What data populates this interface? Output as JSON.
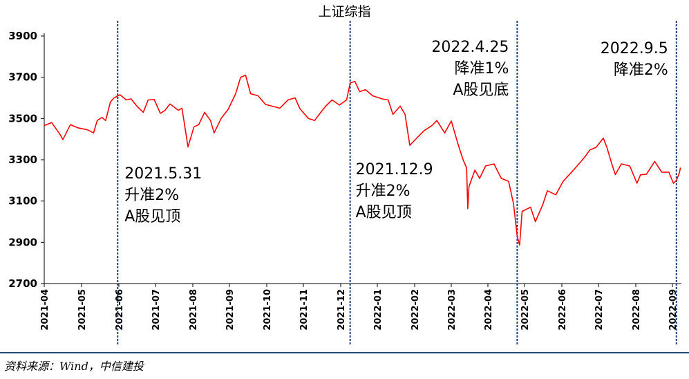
{
  "chart_data": {
    "type": "line",
    "title": "上证综指",
    "xlabel": "",
    "ylabel": "",
    "ylim": [
      2700,
      3900
    ],
    "yticks": [
      "2700",
      "2900",
      "3100",
      "3300",
      "3500",
      "3700",
      "3900"
    ],
    "xticks": [
      "2021-04",
      "2021-05",
      "2021-06",
      "2021-07",
      "2021-08",
      "2021-09",
      "2021-10",
      "2021-11",
      "2021-12",
      "2022-01",
      "2022-02",
      "2022-03",
      "2022-04",
      "2022-05",
      "2022-06",
      "2022-07",
      "2022-08",
      "2022-09"
    ],
    "grid": false,
    "line_color": "#ff0000",
    "series": [
      {
        "name": "",
        "points": [
          [
            "2021-04-01",
            3466
          ],
          [
            "2021-04-07",
            3480
          ],
          [
            "2021-04-14",
            3420
          ],
          [
            "2021-04-16",
            3398
          ],
          [
            "2021-04-22",
            3470
          ],
          [
            "2021-04-28",
            3455
          ],
          [
            "2021-05-06",
            3445
          ],
          [
            "2021-05-11",
            3430
          ],
          [
            "2021-05-14",
            3490
          ],
          [
            "2021-05-18",
            3505
          ],
          [
            "2021-05-21",
            3490
          ],
          [
            "2021-05-25",
            3580
          ],
          [
            "2021-05-28",
            3600
          ],
          [
            "2021-06-02",
            3615
          ],
          [
            "2021-06-07",
            3590
          ],
          [
            "2021-06-11",
            3595
          ],
          [
            "2021-06-16",
            3558
          ],
          [
            "2021-06-21",
            3530
          ],
          [
            "2021-06-25",
            3590
          ],
          [
            "2021-06-30",
            3592
          ],
          [
            "2021-07-05",
            3525
          ],
          [
            "2021-07-09",
            3540
          ],
          [
            "2021-07-13",
            3570
          ],
          [
            "2021-07-20",
            3540
          ],
          [
            "2021-07-23",
            3550
          ],
          [
            "2021-07-27",
            3400
          ],
          [
            "2021-07-28",
            3362
          ],
          [
            "2021-08-02",
            3460
          ],
          [
            "2021-08-06",
            3470
          ],
          [
            "2021-08-11",
            3530
          ],
          [
            "2021-08-16",
            3490
          ],
          [
            "2021-08-19",
            3430
          ],
          [
            "2021-08-25",
            3500
          ],
          [
            "2021-08-31",
            3545
          ],
          [
            "2021-09-06",
            3620
          ],
          [
            "2021-09-10",
            3700
          ],
          [
            "2021-09-14",
            3710
          ],
          [
            "2021-09-18",
            3620
          ],
          [
            "2021-09-24",
            3610
          ],
          [
            "2021-09-30",
            3568
          ],
          [
            "2021-10-12",
            3550
          ],
          [
            "2021-10-19",
            3590
          ],
          [
            "2021-10-25",
            3600
          ],
          [
            "2021-10-29",
            3548
          ],
          [
            "2021-11-05",
            3500
          ],
          [
            "2021-11-10",
            3490
          ],
          [
            "2021-11-15",
            3530
          ],
          [
            "2021-11-19",
            3560
          ],
          [
            "2021-11-24",
            3590
          ],
          [
            "2021-11-30",
            3565
          ],
          [
            "2021-12-06",
            3590
          ],
          [
            "2021-12-09",
            3672
          ],
          [
            "2021-12-13",
            3680
          ],
          [
            "2021-12-17",
            3630
          ],
          [
            "2021-12-22",
            3640
          ],
          [
            "2021-12-28",
            3610
          ],
          [
            "2022-01-05",
            3595
          ],
          [
            "2022-01-10",
            3590
          ],
          [
            "2022-01-14",
            3520
          ],
          [
            "2022-01-20",
            3560
          ],
          [
            "2022-01-24",
            3520
          ],
          [
            "2022-01-28",
            3370
          ],
          [
            "2022-02-08",
            3440
          ],
          [
            "2022-02-14",
            3465
          ],
          [
            "2022-02-18",
            3490
          ],
          [
            "2022-02-24",
            3430
          ],
          [
            "2022-03-01",
            3488
          ],
          [
            "2022-03-07",
            3370
          ],
          [
            "2022-03-11",
            3300
          ],
          [
            "2022-03-14",
            3260
          ],
          [
            "2022-03-15",
            3063
          ],
          [
            "2022-03-16",
            3170
          ],
          [
            "2022-03-21",
            3250
          ],
          [
            "2022-03-25",
            3210
          ],
          [
            "2022-03-30",
            3270
          ],
          [
            "2022-04-06",
            3280
          ],
          [
            "2022-04-12",
            3210
          ],
          [
            "2022-04-18",
            3195
          ],
          [
            "2022-04-22",
            3086
          ],
          [
            "2022-04-25",
            2930
          ],
          [
            "2022-04-27",
            2886
          ],
          [
            "2022-04-29",
            3050
          ],
          [
            "2022-05-06",
            3070
          ],
          [
            "2022-05-10",
            3000
          ],
          [
            "2022-05-16",
            3080
          ],
          [
            "2022-05-20",
            3150
          ],
          [
            "2022-05-27",
            3130
          ],
          [
            "2022-06-02",
            3195
          ],
          [
            "2022-06-09",
            3240
          ],
          [
            "2022-06-15",
            3280
          ],
          [
            "2022-06-20",
            3315
          ],
          [
            "2022-06-24",
            3348
          ],
          [
            "2022-06-29",
            3360
          ],
          [
            "2022-07-05",
            3405
          ],
          [
            "2022-07-08",
            3360
          ],
          [
            "2022-07-12",
            3281
          ],
          [
            "2022-07-15",
            3228
          ],
          [
            "2022-07-20",
            3280
          ],
          [
            "2022-07-27",
            3270
          ],
          [
            "2022-08-02",
            3186
          ],
          [
            "2022-08-05",
            3227
          ],
          [
            "2022-08-10",
            3230
          ],
          [
            "2022-08-17",
            3292
          ],
          [
            "2022-08-23",
            3240
          ],
          [
            "2022-08-29",
            3240
          ],
          [
            "2022-09-02",
            3186
          ],
          [
            "2022-09-05",
            3200
          ],
          [
            "2022-09-08",
            3236
          ],
          [
            "2022-09-09",
            3262
          ]
        ]
      }
    ],
    "annotations": [
      {
        "date": "2021-05-31",
        "lines": [
          "2021.5.31",
          "升准2%",
          "A股见顶"
        ]
      },
      {
        "date": "2021-12-09",
        "lines": [
          "2021.12.9",
          "升准2%",
          "A股见顶"
        ]
      },
      {
        "date": "2022-04-25",
        "lines": [
          "2022.4.25",
          "降准1%",
          "A股见底"
        ]
      },
      {
        "date": "2022-09-05",
        "lines": [
          "2022.9.5",
          "降准2%"
        ]
      }
    ]
  },
  "source": "资料来源：Wind，中信建投"
}
